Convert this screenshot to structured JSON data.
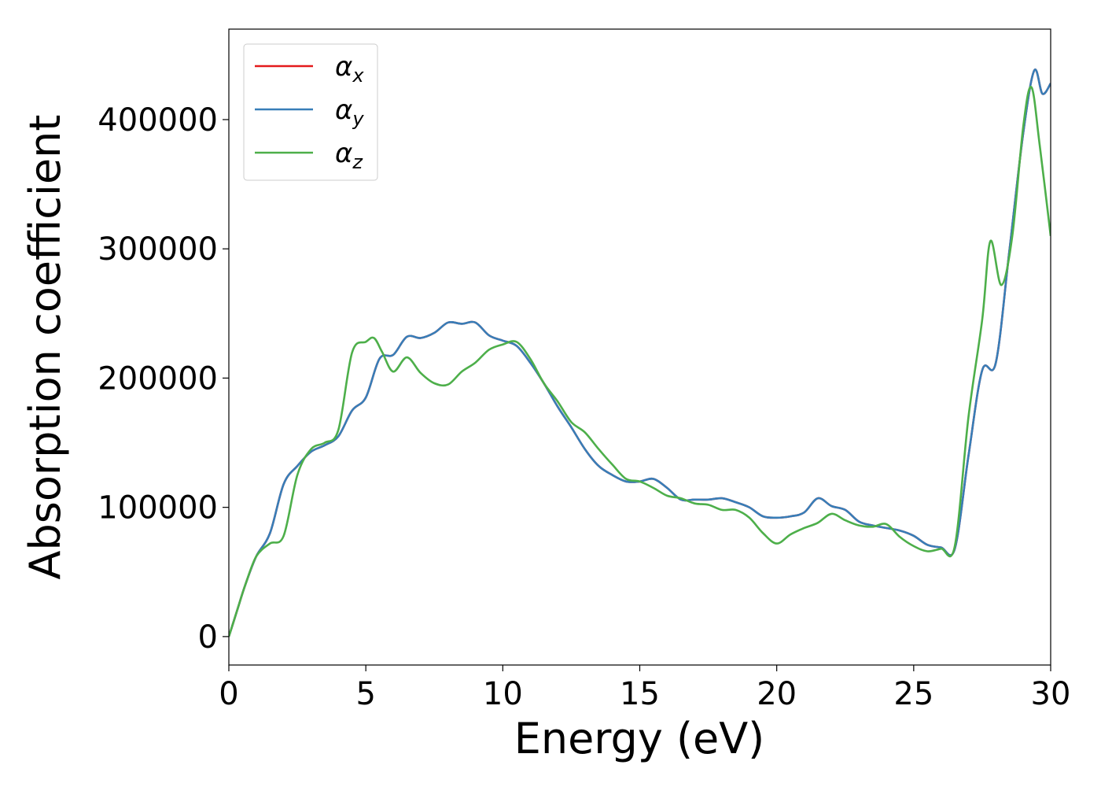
{
  "chart_data": {
    "type": "line",
    "xlabel": "Energy (eV)",
    "ylabel": "Absorption coefficient",
    "xlim": [
      0,
      30
    ],
    "ylim": [
      -22000,
      470000
    ],
    "xticks": [
      0,
      5,
      10,
      15,
      20,
      25,
      30
    ],
    "yticks": [
      0,
      100000,
      200000,
      300000,
      400000
    ],
    "xtick_labels": [
      "0",
      "5",
      "10",
      "15",
      "20",
      "25",
      "30"
    ],
    "ytick_labels": [
      "0",
      "100000",
      "200000",
      "300000",
      "400000"
    ],
    "grid": false,
    "legend_position": "top-left",
    "series": [
      {
        "name": "α",
        "subscript": "x",
        "color": "#e41a1c",
        "x": [
          0,
          0.3,
          0.6,
          1.0,
          1.5,
          2.0,
          2.5,
          3.0,
          3.5,
          4.0,
          4.5,
          5.0,
          5.5,
          6.0,
          6.5,
          7.0,
          7.5,
          8.0,
          8.5,
          9.0,
          9.5,
          10.0,
          10.5,
          11.0,
          11.5,
          12.0,
          12.5,
          13.0,
          13.5,
          14.0,
          14.5,
          15.0,
          15.5,
          16.0,
          16.5,
          17.0,
          17.5,
          18.0,
          18.5,
          19.0,
          19.5,
          20.0,
          20.5,
          21.0,
          21.5,
          22.0,
          22.5,
          23.0,
          23.5,
          24.0,
          24.5,
          25.0,
          25.5,
          26.0,
          26.5,
          27.0,
          27.5,
          28.0,
          28.5,
          29.0,
          29.4,
          29.7,
          30.0
        ],
        "y": [
          0,
          20000,
          40000,
          62000,
          80000,
          118000,
          132000,
          143000,
          148000,
          155000,
          175000,
          185000,
          215000,
          218000,
          232000,
          231000,
          235000,
          243000,
          242000,
          243000,
          233000,
          229000,
          225000,
          212000,
          196000,
          178000,
          162000,
          145000,
          132000,
          125000,
          120000,
          120000,
          122000,
          115000,
          106000,
          106000,
          106000,
          107000,
          104000,
          100000,
          93000,
          92000,
          93000,
          96000,
          107000,
          101000,
          98000,
          89000,
          86000,
          84000,
          82000,
          78000,
          71000,
          69000,
          68000,
          140000,
          206000,
          212000,
          300000,
          390000,
          438000,
          420000,
          428000
        ]
      },
      {
        "name": "α",
        "subscript": "y",
        "color": "#377eb8",
        "x": [
          0,
          0.3,
          0.6,
          1.0,
          1.5,
          2.0,
          2.5,
          3.0,
          3.5,
          4.0,
          4.5,
          5.0,
          5.5,
          6.0,
          6.5,
          7.0,
          7.5,
          8.0,
          8.5,
          9.0,
          9.5,
          10.0,
          10.5,
          11.0,
          11.5,
          12.0,
          12.5,
          13.0,
          13.5,
          14.0,
          14.5,
          15.0,
          15.5,
          16.0,
          16.5,
          17.0,
          17.5,
          18.0,
          18.5,
          19.0,
          19.5,
          20.0,
          20.5,
          21.0,
          21.5,
          22.0,
          22.5,
          23.0,
          23.5,
          24.0,
          24.5,
          25.0,
          25.5,
          26.0,
          26.5,
          27.0,
          27.5,
          28.0,
          28.5,
          29.0,
          29.4,
          29.7,
          30.0
        ],
        "y": [
          0,
          20000,
          40000,
          62000,
          80000,
          118000,
          132000,
          143000,
          148000,
          155000,
          175000,
          185000,
          215000,
          218000,
          232000,
          231000,
          235000,
          243000,
          242000,
          243000,
          233000,
          229000,
          225000,
          212000,
          196000,
          178000,
          162000,
          145000,
          132000,
          125000,
          120000,
          120000,
          122000,
          115000,
          106000,
          106000,
          106000,
          107000,
          104000,
          100000,
          93000,
          92000,
          93000,
          96000,
          107000,
          101000,
          98000,
          89000,
          86000,
          84000,
          82000,
          78000,
          71000,
          69000,
          68000,
          140000,
          206000,
          212000,
          300000,
          390000,
          438000,
          420000,
          428000
        ]
      },
      {
        "name": "α",
        "subscript": "z",
        "color": "#4daf4a",
        "x": [
          0,
          0.3,
          0.6,
          1.0,
          1.5,
          2.0,
          2.5,
          3.0,
          3.5,
          4.0,
          4.5,
          5.0,
          5.3,
          5.6,
          6.0,
          6.5,
          7.0,
          7.5,
          8.0,
          8.5,
          9.0,
          9.5,
          10.0,
          10.5,
          11.0,
          11.5,
          12.0,
          12.5,
          13.0,
          13.5,
          14.0,
          14.5,
          15.0,
          15.5,
          16.0,
          16.5,
          17.0,
          17.5,
          18.0,
          18.5,
          19.0,
          19.5,
          20.0,
          20.5,
          21.0,
          21.5,
          22.0,
          22.5,
          23.0,
          23.5,
          24.0,
          24.5,
          25.0,
          25.5,
          26.0,
          26.5,
          27.0,
          27.5,
          27.8,
          28.2,
          28.6,
          29.0,
          29.3,
          29.6,
          30.0
        ],
        "y": [
          0,
          20000,
          40000,
          62000,
          72000,
          78000,
          125000,
          145000,
          150000,
          160000,
          220000,
          228000,
          231000,
          220000,
          205000,
          216000,
          204000,
          196000,
          195000,
          205000,
          212000,
          222000,
          226000,
          228000,
          215000,
          196000,
          182000,
          166000,
          158000,
          145000,
          133000,
          122000,
          120000,
          115000,
          109000,
          107000,
          103000,
          102000,
          98000,
          98000,
          92000,
          80000,
          72000,
          79000,
          84000,
          88000,
          95000,
          90000,
          86000,
          85000,
          87000,
          77000,
          70000,
          66000,
          68000,
          70000,
          170000,
          245000,
          306000,
          272000,
          310000,
          395000,
          425000,
          380000,
          310000
        ]
      }
    ]
  }
}
